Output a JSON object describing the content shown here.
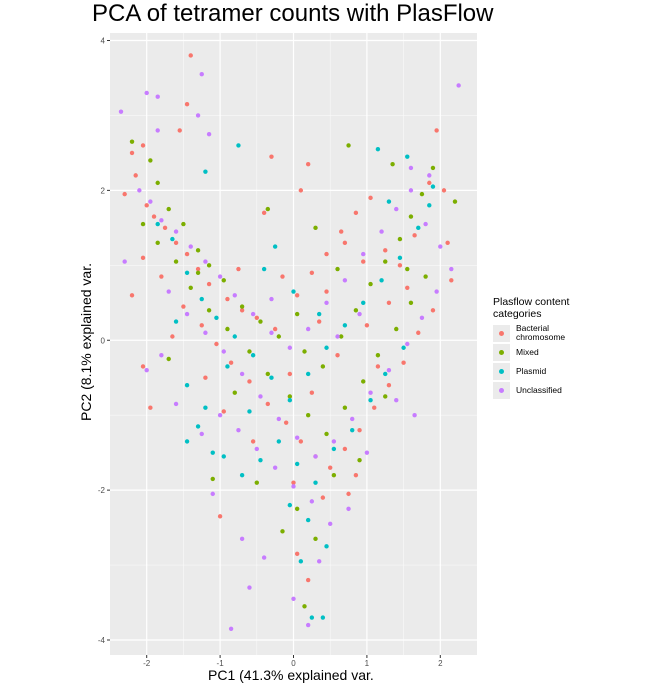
{
  "chart_data": {
    "type": "scatter",
    "title": "PCA of tetramer counts with PlasFlow",
    "xlabel": "PC1 (41.3% explained var.",
    "ylabel": "PC2 (8.1% explained var.",
    "xlim": [
      -2.5,
      2.5
    ],
    "ylim": [
      -4.2,
      4.1
    ],
    "x_ticks": [
      -2,
      -1,
      0,
      1,
      2
    ],
    "y_ticks": [
      -4,
      -2,
      0,
      2,
      4
    ],
    "grid": true,
    "legend": {
      "title": "Plasflow content categories",
      "placement": "right"
    },
    "series": [
      {
        "name": "Bacterial chromosome",
        "color": "#f8766d",
        "points": [
          [
            -1.4,
            3.8
          ],
          [
            -1.45,
            3.15
          ],
          [
            -2.2,
            2.5
          ],
          [
            -2.15,
            2.2
          ],
          [
            -2.05,
            2.6
          ],
          [
            -1.55,
            2.8
          ],
          [
            -0.3,
            2.45
          ],
          [
            0.2,
            2.35
          ],
          [
            0.1,
            2.0
          ],
          [
            -2.3,
            1.95
          ],
          [
            -2.0,
            1.8
          ],
          [
            -1.9,
            1.65
          ],
          [
            -1.75,
            1.5
          ],
          [
            -1.6,
            1.3
          ],
          [
            -1.45,
            1.15
          ],
          [
            -1.3,
            0.95
          ],
          [
            -1.15,
            0.75
          ],
          [
            -0.9,
            0.55
          ],
          [
            -0.7,
            0.4
          ],
          [
            -0.5,
            0.3
          ],
          [
            -0.25,
            0.15
          ],
          [
            0.05,
            0.6
          ],
          [
            0.25,
            0.9
          ],
          [
            0.45,
            1.15
          ],
          [
            0.65,
            1.45
          ],
          [
            0.85,
            1.7
          ],
          [
            1.05,
            1.9
          ],
          [
            1.25,
            1.2
          ],
          [
            1.45,
            1.0
          ],
          [
            1.65,
            1.4
          ],
          [
            1.85,
            2.1
          ],
          [
            1.95,
            2.8
          ],
          [
            2.05,
            2.0
          ],
          [
            2.1,
            1.3
          ],
          [
            2.15,
            0.8
          ],
          [
            1.9,
            0.4
          ],
          [
            1.7,
            0.1
          ],
          [
            1.5,
            -0.3
          ],
          [
            1.3,
            -0.6
          ],
          [
            1.1,
            -0.9
          ],
          [
            0.9,
            -1.2
          ],
          [
            0.7,
            -1.45
          ],
          [
            0.5,
            -1.7
          ],
          [
            0.3,
            -1.55
          ],
          [
            0.1,
            -1.35
          ],
          [
            -0.1,
            -1.1
          ],
          [
            -0.35,
            -0.85
          ],
          [
            -0.6,
            -0.55
          ],
          [
            -0.85,
            -0.3
          ],
          [
            -1.05,
            -0.05
          ],
          [
            -1.25,
            0.2
          ],
          [
            -1.5,
            0.45
          ],
          [
            -1.8,
            0.85
          ],
          [
            -2.05,
            1.1
          ],
          [
            -2.2,
            0.6
          ],
          [
            -2.05,
            -0.35
          ],
          [
            -1.95,
            -0.9
          ],
          [
            -1.0,
            -2.35
          ],
          [
            0.05,
            -2.85
          ],
          [
            0.2,
            -3.2
          ],
          [
            0.0,
            -1.9
          ],
          [
            0.4,
            -2.1
          ],
          [
            0.75,
            -2.05
          ],
          [
            0.85,
            -1.8
          ],
          [
            -0.4,
            1.7
          ],
          [
            0.7,
            1.3
          ],
          [
            1.3,
            0.5
          ],
          [
            -0.75,
            0.95
          ],
          [
            0.35,
            0.25
          ],
          [
            -0.05,
            -0.45
          ],
          [
            0.6,
            -0.2
          ],
          [
            1.0,
            0.2
          ],
          [
            -1.2,
            -0.5
          ],
          [
            -0.55,
            -1.35
          ],
          [
            1.15,
            -0.35
          ],
          [
            0.45,
            0.65
          ],
          [
            -1.65,
            0.05
          ],
          [
            1.55,
            0.7
          ],
          [
            0.95,
            1.05
          ],
          [
            -0.15,
            0.85
          ],
          [
            -0.95,
            -0.95
          ],
          [
            0.25,
            -0.7
          ]
        ]
      },
      {
        "name": "Mixed",
        "color": "#7cae00",
        "points": [
          [
            -2.2,
            2.65
          ],
          [
            -1.95,
            2.4
          ],
          [
            -1.85,
            2.1
          ],
          [
            -1.7,
            1.75
          ],
          [
            -1.5,
            1.55
          ],
          [
            -1.3,
            1.2
          ],
          [
            -1.15,
            1.0
          ],
          [
            -0.95,
            0.8
          ],
          [
            -0.7,
            0.45
          ],
          [
            -0.45,
            0.25
          ],
          [
            -0.2,
            0.05
          ],
          [
            0.15,
            -0.15
          ],
          [
            0.4,
            -0.35
          ],
          [
            0.65,
            0.05
          ],
          [
            0.85,
            0.4
          ],
          [
            1.05,
            0.75
          ],
          [
            1.25,
            1.05
          ],
          [
            1.45,
            1.35
          ],
          [
            1.6,
            1.65
          ],
          [
            1.75,
            1.95
          ],
          [
            1.9,
            2.3
          ],
          [
            2.2,
            1.85
          ],
          [
            1.35,
            2.35
          ],
          [
            0.75,
            2.6
          ],
          [
            -0.35,
            1.75
          ],
          [
            0.3,
            1.5
          ],
          [
            -2.05,
            1.55
          ],
          [
            -1.85,
            1.3
          ],
          [
            -1.6,
            1.05
          ],
          [
            -1.4,
            0.7
          ],
          [
            -1.15,
            0.4
          ],
          [
            -0.9,
            0.15
          ],
          [
            -0.6,
            -0.15
          ],
          [
            -0.35,
            -0.45
          ],
          [
            -0.05,
            -0.75
          ],
          [
            0.2,
            -1.0
          ],
          [
            0.45,
            -1.25
          ],
          [
            0.7,
            -0.9
          ],
          [
            0.95,
            -0.55
          ],
          [
            1.15,
            -0.2
          ],
          [
            1.4,
            0.15
          ],
          [
            1.6,
            0.5
          ],
          [
            1.8,
            0.85
          ],
          [
            -1.1,
            -1.85
          ],
          [
            -0.5,
            -1.9
          ],
          [
            -0.15,
            -2.55
          ],
          [
            0.05,
            -2.25
          ],
          [
            0.3,
            -2.65
          ],
          [
            0.15,
            -3.55
          ],
          [
            0.55,
            -1.8
          ],
          [
            0.9,
            -1.6
          ],
          [
            -1.3,
            0.9
          ],
          [
            0.6,
            0.95
          ],
          [
            -0.8,
            -0.7
          ],
          [
            1.25,
            -0.75
          ],
          [
            0.05,
            0.35
          ],
          [
            -1.7,
            -0.25
          ],
          [
            1.55,
            0.95
          ]
        ]
      },
      {
        "name": "Plasmid",
        "color": "#00bfc4",
        "points": [
          [
            -0.75,
            2.6
          ],
          [
            -1.2,
            2.25
          ],
          [
            1.15,
            2.55
          ],
          [
            1.55,
            2.45
          ],
          [
            1.9,
            2.05
          ],
          [
            -1.85,
            1.55
          ],
          [
            -1.65,
            1.35
          ],
          [
            -1.45,
            0.9
          ],
          [
            -1.25,
            0.55
          ],
          [
            -1.05,
            0.3
          ],
          [
            -0.8,
            0.05
          ],
          [
            -0.55,
            -0.2
          ],
          [
            -0.3,
            -0.5
          ],
          [
            -0.05,
            -0.8
          ],
          [
            0.2,
            -0.45
          ],
          [
            0.45,
            -0.1
          ],
          [
            0.7,
            0.2
          ],
          [
            0.95,
            0.5
          ],
          [
            1.2,
            0.8
          ],
          [
            1.45,
            1.1
          ],
          [
            1.7,
            1.5
          ],
          [
            1.85,
            1.8
          ],
          [
            -0.4,
            0.95
          ],
          [
            0.0,
            0.65
          ],
          [
            -1.45,
            -0.6
          ],
          [
            -1.2,
            -0.9
          ],
          [
            -1.45,
            -1.35
          ],
          [
            -0.95,
            -1.55
          ],
          [
            -0.7,
            -1.8
          ],
          [
            -0.45,
            -1.6
          ],
          [
            -0.2,
            -1.35
          ],
          [
            0.05,
            -1.65
          ],
          [
            0.3,
            -1.9
          ],
          [
            -0.05,
            -2.2
          ],
          [
            0.2,
            -2.4
          ],
          [
            0.45,
            -2.75
          ],
          [
            0.1,
            -2.95
          ],
          [
            0.25,
            -3.7
          ],
          [
            0.4,
            -3.7
          ],
          [
            -1.1,
            -1.5
          ],
          [
            -0.6,
            -0.95
          ],
          [
            0.55,
            -1.45
          ],
          [
            0.8,
            -1.2
          ],
          [
            1.05,
            -0.8
          ],
          [
            1.25,
            -0.45
          ],
          [
            1.5,
            -0.1
          ],
          [
            -1.6,
            0.25
          ],
          [
            -0.9,
            -0.35
          ],
          [
            0.35,
            0.35
          ],
          [
            1.3,
            1.85
          ],
          [
            -0.25,
            1.25
          ],
          [
            -1.3,
            -1.15
          ]
        ]
      },
      {
        "name": "Unclassified",
        "color": "#c77cff",
        "points": [
          [
            -1.25,
            3.55
          ],
          [
            -2.0,
            3.3
          ],
          [
            -1.85,
            3.25
          ],
          [
            -2.35,
            3.05
          ],
          [
            -1.3,
            3.0
          ],
          [
            -1.85,
            2.8
          ],
          [
            -1.15,
            2.75
          ],
          [
            2.25,
            3.4
          ],
          [
            1.6,
            2.3
          ],
          [
            1.85,
            2.2
          ],
          [
            -2.1,
            2.0
          ],
          [
            -1.95,
            1.85
          ],
          [
            -1.8,
            1.6
          ],
          [
            -1.6,
            1.45
          ],
          [
            -1.4,
            1.25
          ],
          [
            -1.2,
            1.05
          ],
          [
            -1.0,
            0.85
          ],
          [
            -0.8,
            0.6
          ],
          [
            -0.55,
            0.35
          ],
          [
            -0.3,
            0.1
          ],
          [
            -0.05,
            -0.1
          ],
          [
            0.2,
            0.15
          ],
          [
            0.45,
            0.5
          ],
          [
            0.7,
            0.8
          ],
          [
            0.95,
            1.15
          ],
          [
            1.2,
            1.45
          ],
          [
            1.4,
            1.75
          ],
          [
            1.6,
            2.0
          ],
          [
            1.8,
            1.55
          ],
          [
            2.0,
            1.25
          ],
          [
            2.15,
            0.95
          ],
          [
            1.95,
            0.65
          ],
          [
            1.75,
            0.3
          ],
          [
            1.55,
            -0.05
          ],
          [
            1.3,
            -0.4
          ],
          [
            1.05,
            -0.7
          ],
          [
            0.8,
            -1.05
          ],
          [
            0.55,
            -1.35
          ],
          [
            0.3,
            -1.55
          ],
          [
            0.05,
            -1.3
          ],
          [
            -0.2,
            -1.05
          ],
          [
            -0.45,
            -0.75
          ],
          [
            -0.7,
            -0.45
          ],
          [
            -0.95,
            -0.15
          ],
          [
            -1.2,
            0.1
          ],
          [
            -1.45,
            0.35
          ],
          [
            -1.7,
            0.65
          ],
          [
            -2.3,
            1.05
          ],
          [
            -2.0,
            -0.4
          ],
          [
            -1.8,
            -0.2
          ],
          [
            -1.25,
            -1.25
          ],
          [
            -1.0,
            -1.0
          ],
          [
            -0.75,
            -1.2
          ],
          [
            -0.5,
            -1.45
          ],
          [
            -0.25,
            -1.7
          ],
          [
            0.0,
            -1.95
          ],
          [
            0.25,
            -2.15
          ],
          [
            0.5,
            -2.45
          ],
          [
            0.75,
            -2.25
          ],
          [
            -1.1,
            -2.05
          ],
          [
            -0.7,
            -2.65
          ],
          [
            -0.4,
            -2.9
          ],
          [
            -0.6,
            -3.3
          ],
          [
            -0.85,
            -3.85
          ],
          [
            0.2,
            -3.8
          ],
          [
            0.0,
            -3.45
          ],
          [
            0.35,
            -2.95
          ],
          [
            1.0,
            -1.5
          ],
          [
            1.4,
            -0.8
          ],
          [
            1.65,
            -1.0
          ],
          [
            -1.6,
            -0.85
          ],
          [
            0.6,
            0.05
          ],
          [
            -0.3,
            0.55
          ],
          [
            0.9,
            0.35
          ]
        ]
      }
    ]
  }
}
